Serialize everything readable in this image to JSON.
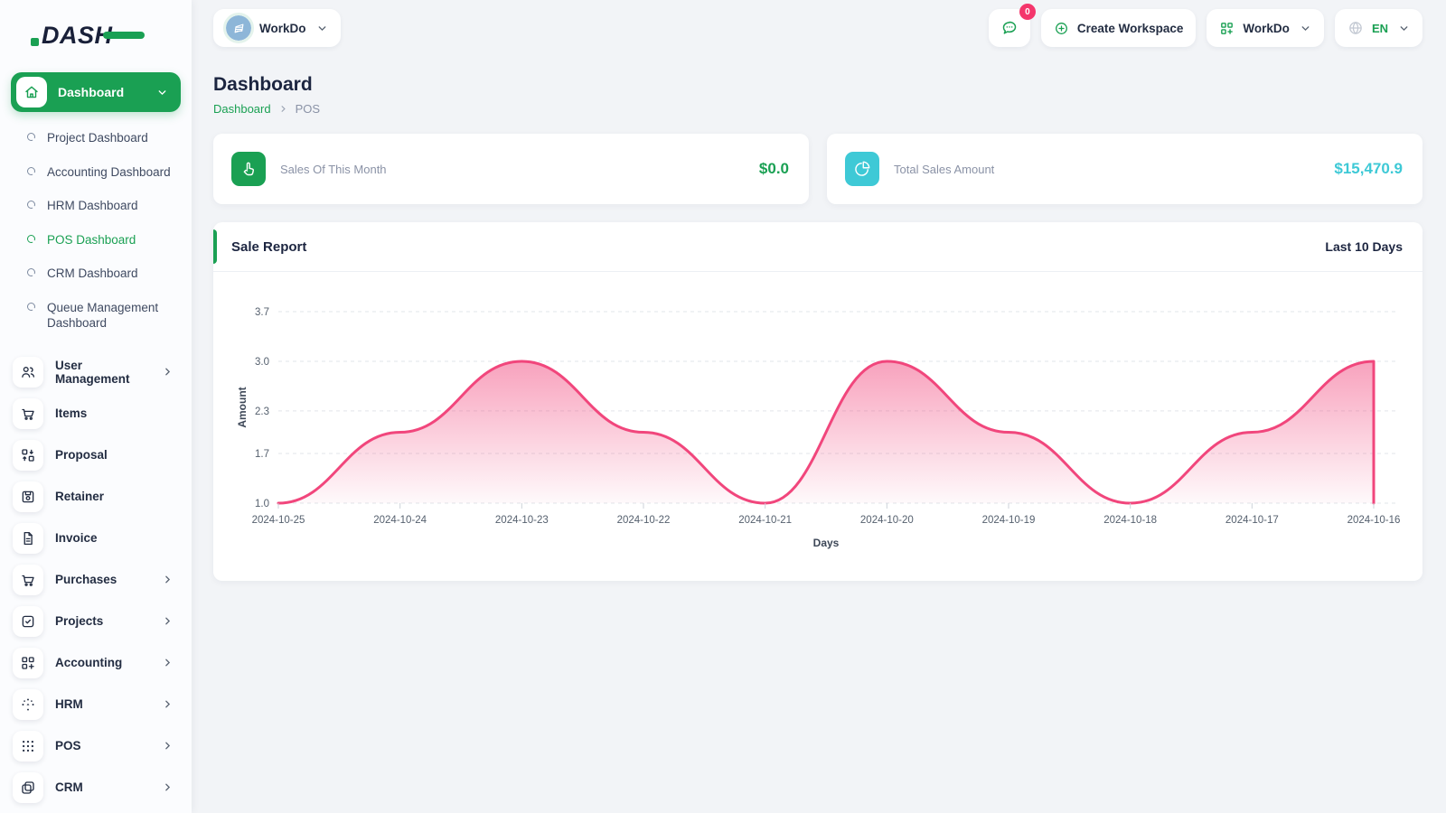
{
  "logo": {
    "text": "DASH"
  },
  "topbar": {
    "workspace_pill": {
      "name": "WorkDo"
    },
    "messages_badge": "0",
    "create_workspace_label": "Create Workspace",
    "workspace_menu_label": "WorkDo",
    "language_label": "EN"
  },
  "sidebar": {
    "dashboard": {
      "label": "Dashboard",
      "children": [
        {
          "label": "Project Dashboard",
          "active": false
        },
        {
          "label": "Accounting Dashboard",
          "active": false
        },
        {
          "label": "HRM Dashboard",
          "active": false
        },
        {
          "label": "POS Dashboard",
          "active": true
        },
        {
          "label": "CRM Dashboard",
          "active": false
        },
        {
          "label": "Queue Management Dashboard",
          "active": false
        }
      ]
    },
    "items": [
      {
        "label": "User Management",
        "expandable": true
      },
      {
        "label": "Items",
        "expandable": false
      },
      {
        "label": "Proposal",
        "expandable": false
      },
      {
        "label": "Retainer",
        "expandable": false
      },
      {
        "label": "Invoice",
        "expandable": false
      },
      {
        "label": "Purchases",
        "expandable": true
      },
      {
        "label": "Projects",
        "expandable": true
      },
      {
        "label": "Accounting",
        "expandable": true
      },
      {
        "label": "HRM",
        "expandable": true
      },
      {
        "label": "POS",
        "expandable": true
      },
      {
        "label": "CRM",
        "expandable": true
      }
    ]
  },
  "page": {
    "title": "Dashboard",
    "breadcrumb": {
      "root": "Dashboard",
      "current": "POS"
    }
  },
  "stats": [
    {
      "label": "Sales Of This Month",
      "value": "$0.0",
      "accent": "#1aa053",
      "icon": "tap-icon"
    },
    {
      "label": "Total Sales Amount",
      "value": "$15,470.9",
      "accent": "#3ec9d6",
      "icon": "pie-chart-icon"
    }
  ],
  "sale_report": {
    "title": "Sale Report",
    "range": "Last 10 Days"
  },
  "chart_data": {
    "type": "area",
    "title": "Sale Report",
    "x": [
      "2024-10-25",
      "2024-10-24",
      "2024-10-23",
      "2024-10-22",
      "2024-10-21",
      "2024-10-20",
      "2024-10-19",
      "2024-10-18",
      "2024-10-17",
      "2024-10-16"
    ],
    "values": [
      1,
      2,
      3,
      2,
      1,
      3,
      2,
      1,
      2,
      3
    ],
    "xlabel": "Days",
    "ylabel": "Amount",
    "y_ticks": [
      1.0,
      1.7,
      2.3,
      3.0,
      3.7
    ],
    "y_tick_labels": [
      "1.0",
      "1.7",
      "2.3",
      "3.0",
      "3.7"
    ],
    "ylim": [
      1.0,
      3.7
    ],
    "line_color": "#f1467c",
    "fill_from": "rgba(241,70,124,0.50)",
    "fill_to": "rgba(241,70,124,0.03)",
    "grid": true,
    "grid_style": "dashed",
    "legend": false,
    "curve": "smooth"
  }
}
